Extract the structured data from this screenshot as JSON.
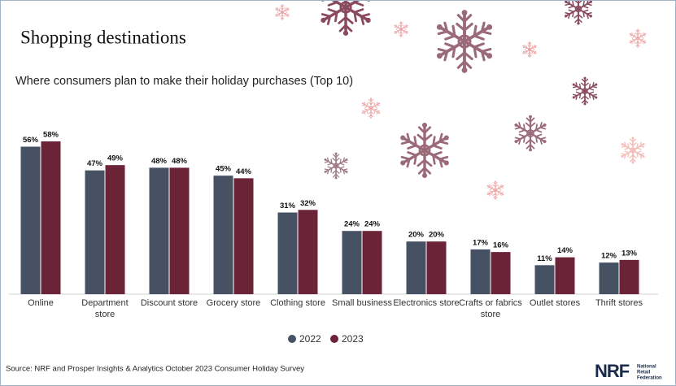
{
  "chart_data": {
    "type": "bar",
    "title": "Shopping destinations",
    "subtitle": "Where consumers plan to make their holiday purchases (Top 10)",
    "categories": [
      "Online",
      "Department store",
      "Discount store",
      "Grocery store",
      "Clothing store",
      "Small business",
      "Electronics store",
      "Crafts or fabrics store",
      "Outlet stores",
      "Thrift stores"
    ],
    "series": [
      {
        "name": "2022",
        "color": "#465263",
        "values": [
          56,
          47,
          48,
          45,
          31,
          24,
          20,
          17,
          11,
          12
        ],
        "value_labels": [
          "56%",
          "47%",
          "48%",
          "45%",
          "31%",
          "24%",
          "20%",
          "17%",
          "11%",
          "12%"
        ]
      },
      {
        "name": "2023",
        "color": "#6b2337",
        "values": [
          58,
          49,
          48,
          44,
          32,
          24,
          20,
          16,
          14,
          13
        ],
        "value_labels": [
          "58%",
          "49%",
          "48%",
          "44%",
          "32%",
          "24%",
          "20%",
          "16%",
          "14%",
          "13%"
        ]
      }
    ],
    "source": "Source: NRF and Prosper Insights & Analytics October 2023 Consumer Holiday Survey"
  },
  "logo": {
    "mark": "NRF",
    "lines": [
      "National",
      "Retail",
      "Federation"
    ]
  }
}
